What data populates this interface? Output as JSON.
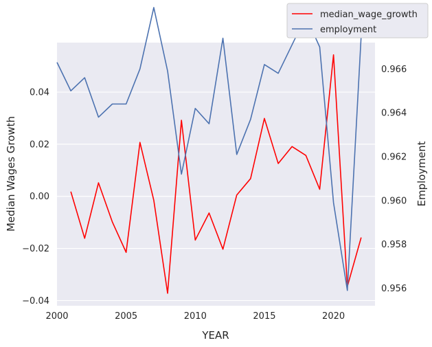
{
  "chart_data": {
    "type": "line",
    "xlabel": "YEAR",
    "ylabel": "Median Wages Growth",
    "y2label": "Employment",
    "xlim": [
      2000,
      2023
    ],
    "ylim": [
      -0.042,
      0.059
    ],
    "y2lim": [
      0.9552,
      0.9672
    ],
    "x_ticks": [
      2000,
      2005,
      2010,
      2015,
      2020
    ],
    "y_ticks": [
      -0.04,
      -0.02,
      0.0,
      0.02,
      0.04
    ],
    "y_tick_labels": [
      "−0.04",
      "−0.02",
      "0.00",
      "0.02",
      "0.04"
    ],
    "y2_ticks": [
      0.956,
      0.958,
      0.96,
      0.962,
      0.964,
      0.966,
      0.968
    ],
    "y2_tick_labels": [
      "0.956",
      "0.958",
      "0.960",
      "0.962",
      "0.964",
      "0.966",
      "0.968"
    ],
    "grid": true,
    "legend_position": "top-right",
    "series": [
      {
        "name": "median_wage_growth",
        "axis": "left",
        "color": "#ff0000",
        "x": [
          2001,
          2002,
          2003,
          2004,
          2005,
          2006,
          2007,
          2008,
          2009,
          2010,
          2011,
          2012,
          2013,
          2014,
          2015,
          2016,
          2017,
          2018,
          2019,
          2020,
          2021,
          2022
        ],
        "values": [
          0.0018,
          -0.0161,
          0.0052,
          -0.0098,
          -0.0215,
          0.0207,
          -0.0015,
          -0.0372,
          0.0292,
          -0.0168,
          -0.0064,
          -0.0203,
          0.0005,
          0.0068,
          0.0299,
          0.0126,
          0.0191,
          0.0157,
          0.0027,
          0.0543,
          -0.0346,
          -0.0158
        ]
      },
      {
        "name": "employment",
        "axis": "right",
        "color": "#4c72b0",
        "x": [
          2000,
          2001,
          2002,
          2003,
          2004,
          2005,
          2006,
          2007,
          2008,
          2009,
          2010,
          2011,
          2012,
          2013,
          2014,
          2015,
          2016,
          2017,
          2018,
          2019,
          2020,
          2021,
          2022,
          2023
        ],
        "values": [
          0.9663,
          0.965,
          0.9656,
          0.9638,
          0.9644,
          0.9644,
          0.966,
          0.9688,
          0.9659,
          0.9612,
          0.9642,
          0.9635,
          0.9674,
          0.9621,
          0.9637,
          0.9662,
          0.9658,
          0.9671,
          0.9684,
          0.967,
          0.9599,
          0.9559,
          0.9675,
          0.9678
        ]
      }
    ]
  }
}
